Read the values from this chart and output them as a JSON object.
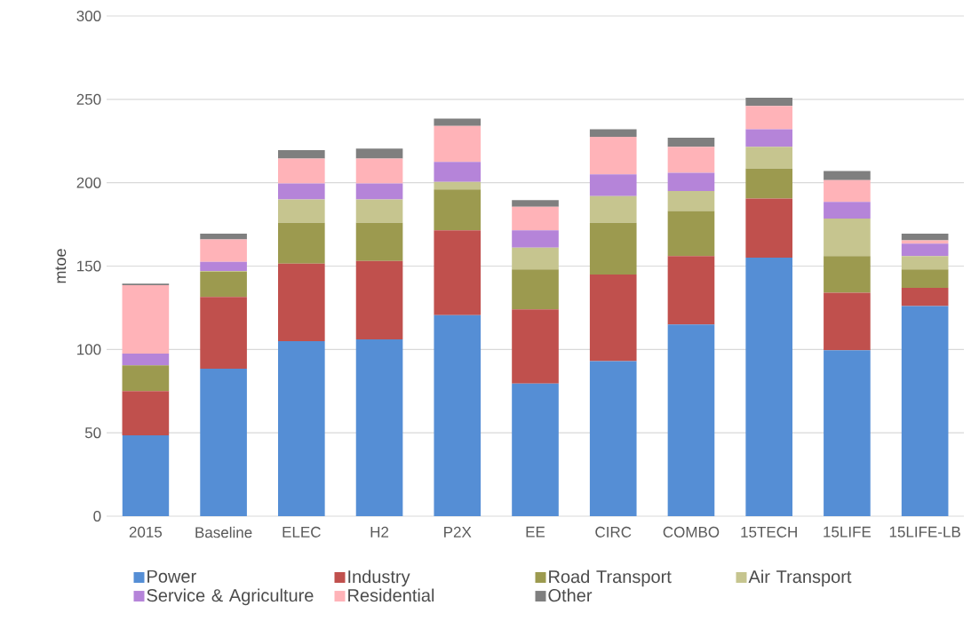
{
  "chart_data": {
    "type": "bar",
    "stacked": true,
    "ylabel": "mtoe",
    "categories": [
      "2015",
      "Baseline",
      "ELEC",
      "H2",
      "P2X",
      "EE",
      "CIRC",
      "COMBO",
      "15TECH",
      "15LIFE",
      "15LIFE-LB"
    ],
    "series": [
      {
        "name": "Power",
        "color": "#558ed5",
        "values": [
          48.5,
          88.5,
          105,
          106,
          120.5,
          79.5,
          93,
          115,
          155,
          99.5,
          126
        ]
      },
      {
        "name": "Industry",
        "color": "#c0504d",
        "values": [
          26.5,
          43,
          46.5,
          47,
          51,
          44.5,
          52,
          41,
          35.5,
          34.5,
          11
        ]
      },
      {
        "name": "Road Transport",
        "color": "#9c9a4f",
        "values": [
          15.5,
          15,
          24.5,
          23,
          24.5,
          24,
          31,
          27,
          18,
          22,
          11
        ]
      },
      {
        "name": "Air Transport",
        "color": "#c6c58f",
        "values": [
          0,
          0.5,
          14,
          14,
          4.5,
          13,
          16,
          12,
          13,
          22.5,
          8
        ]
      },
      {
        "name": "Service & Agriculture",
        "color": "#b584d9",
        "values": [
          7,
          5.5,
          9.5,
          9.5,
          12,
          10.5,
          13,
          11,
          10.5,
          10,
          7.5
        ]
      },
      {
        "name": "Residential",
        "color": "#ffb3b8",
        "values": [
          41,
          13.5,
          15,
          15,
          21.5,
          14,
          22.5,
          15.5,
          14,
          13,
          2
        ]
      },
      {
        "name": "Other",
        "color": "#7f7f7f",
        "values": [
          1,
          3.5,
          5,
          6,
          4.5,
          4,
          4.5,
          5.5,
          5,
          5.5,
          4
        ]
      }
    ],
    "ylim": [
      0,
      300
    ],
    "yticks": [
      0,
      50,
      100,
      150,
      200,
      250,
      300
    ],
    "grid": "y",
    "legend": "bottom"
  }
}
